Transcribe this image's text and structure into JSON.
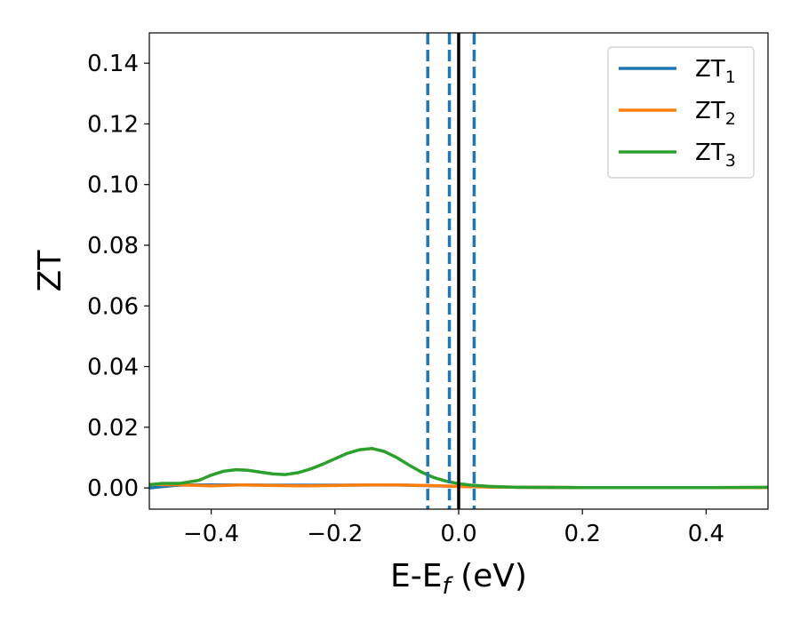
{
  "chart_data": {
    "type": "line",
    "title": "",
    "xlabel": {
      "main": "E-E",
      "sub": "f",
      "unit": " (eV)"
    },
    "ylabel": "ZT",
    "xlim": [
      -0.5,
      0.5
    ],
    "ylim": [
      -0.007,
      0.15
    ],
    "xticks": [
      -0.4,
      -0.2,
      0.0,
      0.2,
      0.4
    ],
    "xtick_labels": [
      "−0.4",
      "−0.2",
      "0.0",
      "0.2",
      "0.4"
    ],
    "yticks": [
      0.0,
      0.02,
      0.04,
      0.06,
      0.08,
      0.1,
      0.12,
      0.14
    ],
    "ytick_labels": [
      "0.00",
      "0.02",
      "0.04",
      "0.06",
      "0.08",
      "0.10",
      "0.12",
      "0.14"
    ],
    "grid": false,
    "legend_position": "top-right",
    "series": [
      {
        "name": "ZT",
        "sub": "1",
        "color": "#1f77b4",
        "x": [
          -0.5,
          -0.48,
          -0.46,
          -0.44,
          -0.42,
          -0.4,
          -0.35,
          -0.3,
          -0.2,
          -0.1,
          0.0,
          0.1,
          0.2,
          0.3,
          0.4,
          0.5
        ],
        "y": [
          0.0,
          0.0004,
          0.0008,
          0.001,
          0.001,
          0.001,
          0.001,
          0.0009,
          0.0009,
          0.001,
          0.0005,
          0.0002,
          0.0001,
          0.0001,
          0.0001,
          0.0001
        ]
      },
      {
        "name": "ZT",
        "sub": "2",
        "color": "#ff7f0e",
        "x": [
          -0.5,
          -0.45,
          -0.4,
          -0.35,
          -0.3,
          -0.25,
          -0.2,
          -0.15,
          -0.1,
          -0.05,
          0.0,
          0.05,
          0.1,
          0.2,
          0.3,
          0.4,
          0.5
        ],
        "y": [
          0.0012,
          0.001,
          0.0007,
          0.001,
          0.0008,
          0.0007,
          0.0008,
          0.001,
          0.001,
          0.0008,
          0.0005,
          0.0003,
          0.0002,
          0.0001,
          0.0001,
          0.0001,
          0.0001
        ]
      },
      {
        "name": "ZT",
        "sub": "3",
        "color": "#2ca02c",
        "x": [
          -0.5,
          -0.48,
          -0.45,
          -0.42,
          -0.4,
          -0.38,
          -0.36,
          -0.34,
          -0.32,
          -0.3,
          -0.28,
          -0.26,
          -0.24,
          -0.22,
          -0.2,
          -0.18,
          -0.16,
          -0.14,
          -0.12,
          -0.1,
          -0.08,
          -0.06,
          -0.04,
          -0.02,
          0.0,
          0.02,
          0.05,
          0.08,
          0.1,
          0.2,
          0.3,
          0.4,
          0.5
        ],
        "y": [
          0.001,
          0.0015,
          0.0015,
          0.0025,
          0.0042,
          0.0055,
          0.006,
          0.0058,
          0.0052,
          0.0046,
          0.0044,
          0.005,
          0.0062,
          0.0078,
          0.0096,
          0.0114,
          0.0126,
          0.013,
          0.012,
          0.01,
          0.0075,
          0.0052,
          0.0034,
          0.0022,
          0.0014,
          0.0009,
          0.0005,
          0.0003,
          0.0002,
          0.0001,
          0.0001,
          0.0001,
          0.0002
        ]
      }
    ],
    "vlines": [
      {
        "x": -0.05,
        "style": "dashed",
        "color": "#1f77b4"
      },
      {
        "x": -0.015,
        "style": "dashed",
        "color": "#1f77b4"
      },
      {
        "x": 0.0,
        "style": "solid",
        "color": "#000000"
      },
      {
        "x": 0.025,
        "style": "dashed",
        "color": "#1f77b4"
      }
    ]
  }
}
